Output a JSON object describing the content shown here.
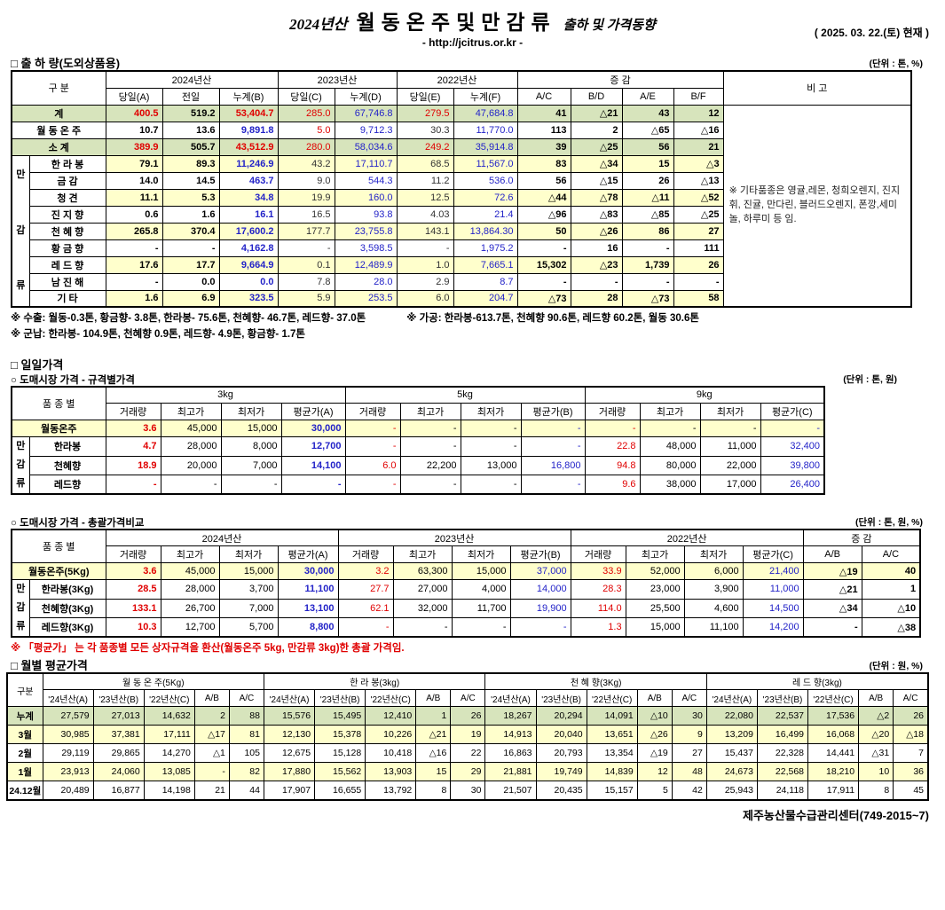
{
  "palette": {
    "red": "#e00000",
    "blue": "#2323c8",
    "green_bg": "#d7e4bc",
    "yellow_bg": "#ffffcc"
  },
  "header": {
    "title_year": "2024년산",
    "title_main": "월동온주및만감류",
    "title_sub": "출하 및 가격동향",
    "url": "- http://jcitrus.or.kr -",
    "date": "( 2025. 03. 22.(토) 현재 )"
  },
  "shipment": {
    "section_title": "□ 출 하 량(도외상품용)",
    "unit": "(단위 : 톤, %)",
    "corner_label": "구    분",
    "note_label": "비 고",
    "col_groups": [
      {
        "label": "2024년산",
        "span": 3
      },
      {
        "label": "2023년산",
        "span": 2
      },
      {
        "label": "2022년산",
        "span": 2
      },
      {
        "label": "증        감",
        "span": 4
      }
    ],
    "columns": [
      "당일(A)",
      "전일",
      "누계(B)",
      "당일(C)",
      "누계(D)",
      "당일(E)",
      "누계(F)",
      "A/C",
      "B/D",
      "A/E",
      "B/F"
    ],
    "group_label": "만감류",
    "remark": "※ 기타품종은 영귤,레몬, 청희오렌지, 진지휘, 진귤, 만다린, 블러드오렌지, 폰깡,세미놀, 하루미 등 임.",
    "default_colors": [
      "k",
      "k",
      "b",
      "k",
      "b",
      "k",
      "b",
      "k",
      "k",
      "k",
      "k"
    ],
    "rows": [
      {
        "name": "계",
        "bg": "green",
        "colors": [
          "r",
          "k",
          "r",
          "r",
          "b",
          "r",
          "b",
          "k",
          "k",
          "k",
          "k"
        ],
        "cells": [
          "400.5",
          "519.2",
          "53,404.7",
          "285.0",
          "67,746.8",
          "279.5",
          "47,684.8",
          "41",
          "△21",
          "43",
          "12"
        ]
      },
      {
        "name": "월 동 온 주",
        "bg": "white",
        "colors": [
          "k",
          "k",
          "b",
          "r",
          "b",
          "k",
          "b",
          "k",
          "k",
          "k",
          "k"
        ],
        "cells": [
          "10.7",
          "13.6",
          "9,891.8",
          "5.0",
          "9,712.3",
          "30.3",
          "11,770.0",
          "113",
          "2",
          "△65",
          "△16"
        ]
      },
      {
        "name": "소      계",
        "bg": "green",
        "colors": [
          "r",
          "k",
          "r",
          "r",
          "b",
          "r",
          "b",
          "k",
          "k",
          "k",
          "k"
        ],
        "cells": [
          "389.9",
          "505.7",
          "43,512.9",
          "280.0",
          "58,034.6",
          "249.2",
          "35,914.8",
          "39",
          "△25",
          "56",
          "21"
        ]
      },
      {
        "name": "한 라 봉",
        "bg": "yellow",
        "cells": [
          "79.1",
          "89.3",
          "11,246.9",
          "43.2",
          "17,110.7",
          "68.5",
          "11,567.0",
          "83",
          "△34",
          "15",
          "△3"
        ]
      },
      {
        "name": "금      감",
        "bg": "white",
        "cells": [
          "14.0",
          "14.5",
          "463.7",
          "9.0",
          "544.3",
          "11.2",
          "536.0",
          "56",
          "△15",
          "26",
          "△13"
        ]
      },
      {
        "name": "청      견",
        "bg": "yellow",
        "cells": [
          "11.1",
          "5.3",
          "34.8",
          "19.9",
          "160.0",
          "12.5",
          "72.6",
          "△44",
          "△78",
          "△11",
          "△52"
        ]
      },
      {
        "name": "진 지 향",
        "bg": "white",
        "cells": [
          "0.6",
          "1.6",
          "16.1",
          "16.5",
          "93.8",
          "4.03",
          "21.4",
          "△96",
          "△83",
          "△85",
          "△25"
        ]
      },
      {
        "name": "천 혜 향",
        "bg": "yellow",
        "cells": [
          "265.8",
          "370.4",
          "17,600.2",
          "177.7",
          "23,755.8",
          "143.1",
          "13,864.30",
          "50",
          "△26",
          "86",
          "27"
        ]
      },
      {
        "name": "황 금 향",
        "bg": "white",
        "cells": [
          "-",
          "-",
          "4,162.8",
          "-",
          "3,598.5",
          "-",
          "1,975.2",
          "-",
          "16",
          "-",
          "111"
        ]
      },
      {
        "name": "레 드 향",
        "bg": "yellow",
        "cells": [
          "17.6",
          "17.7",
          "9,664.9",
          "0.1",
          "12,489.9",
          "1.0",
          "7,665.1",
          "15,302",
          "△23",
          "1,739",
          "26"
        ]
      },
      {
        "name": "남 진 해",
        "bg": "white",
        "cells": [
          "-",
          "0.0",
          "0.0",
          "7.8",
          "28.0",
          "2.9",
          "8.7",
          "-",
          "-",
          "-",
          "-"
        ]
      },
      {
        "name": "기      타",
        "bg": "yellow",
        "cells": [
          "1.6",
          "6.9",
          "323.5",
          "5.9",
          "253.5",
          "6.0",
          "204.7",
          "△73",
          "28",
          "△73",
          "58"
        ]
      }
    ]
  },
  "notes": {
    "export": "※ 수출: 월동-0.3톤, 황금향- 3.8톤, 한라봉- 75.6톤, 천혜향- 46.7톤, 레드향- 37.0톤",
    "process": "※ 가공:  한라봉-613.7톤, 천혜향 90.6톤, 레드향 60.2톤, 월동 30.6톤",
    "military": "※ 군납: 한라봉- 104.9톤, 천혜향 0.9톤, 레드향- 4.9톤, 황금향- 1.7톤"
  },
  "daily": {
    "section_title": "□ 일일가격",
    "by_spec": {
      "title": "○ 도매시장 가격 - 규격별가격",
      "unit": "(단위 : 톤, 원)",
      "corner_label": "품 종 별",
      "group_label": "만감류",
      "sizes": [
        {
          "label": "3kg",
          "span": 4
        },
        {
          "label": "5kg",
          "span": 4
        },
        {
          "label": "9kg",
          "span": 4
        }
      ],
      "columns": [
        "거래량",
        "최고가",
        "최저가",
        "평균가(A)",
        "거래량",
        "최고가",
        "최저가",
        "평균가(B)",
        "거래량",
        "최고가",
        "최저가",
        "평균가(C)"
      ],
      "col_colors": [
        "r",
        "k",
        "k",
        "b",
        "r",
        "k",
        "k",
        "b",
        "r",
        "k",
        "k",
        "b"
      ],
      "rows": [
        {
          "name": "월동온주",
          "bg": "yellow",
          "cells": [
            "3.6",
            "45,000",
            "15,000",
            "30,000",
            "-",
            "-",
            "-",
            "-",
            "-",
            "-",
            "-",
            "-"
          ]
        },
        {
          "name": "한라봉",
          "bg": "white",
          "cells": [
            "4.7",
            "28,000",
            "8,000",
            "12,700",
            "-",
            "-",
            "-",
            "-",
            "22.8",
            "48,000",
            "11,000",
            "32,400"
          ]
        },
        {
          "name": "천혜향",
          "bg": "white",
          "cells": [
            "18.9",
            "20,000",
            "7,000",
            "14,100",
            "6.0",
            "22,200",
            "13,000",
            "16,800",
            "94.8",
            "80,000",
            "22,000",
            "39,800"
          ]
        },
        {
          "name": "레드향",
          "bg": "white",
          "cells": [
            "-",
            "-",
            "-",
            "-",
            "-",
            "-",
            "-",
            "-",
            "9.6",
            "38,000",
            "17,000",
            "26,400"
          ]
        }
      ]
    },
    "overall": {
      "title": "○ 도매시장 가격 - 총괄가격비교",
      "unit": "(단위 : 톤, 원, %)",
      "corner_label": "품 종 별",
      "group_label": "만감류",
      "year_groups": [
        {
          "label": "2024년산",
          "span": 4
        },
        {
          "label": "2023년산",
          "span": 4
        },
        {
          "label": "2022년산",
          "span": 4
        },
        {
          "label": "증    감",
          "span": 2
        }
      ],
      "columns": [
        "거래량",
        "최고가",
        "최저가",
        "평균가(A)",
        "거래량",
        "최고가",
        "최저가",
        "평균가(B)",
        "거래량",
        "최고가",
        "최저가",
        "평균가(C)",
        "A/B",
        "A/C"
      ],
      "col_colors": [
        "r",
        "k",
        "k",
        "b",
        "r",
        "k",
        "k",
        "b",
        "r",
        "k",
        "k",
        "b",
        "k",
        "k"
      ],
      "rows": [
        {
          "name": "월동온주(5Kg)",
          "bg": "yellow",
          "cells": [
            "3.6",
            "45,000",
            "15,000",
            "30,000",
            "3.2",
            "63,300",
            "15,000",
            "37,000",
            "33.9",
            "52,000",
            "6,000",
            "21,400",
            "△19",
            "40"
          ]
        },
        {
          "name": "한라봉(3Kg)",
          "bg": "white",
          "cells": [
            "28.5",
            "28,000",
            "3,700",
            "11,100",
            "27.7",
            "27,000",
            "4,000",
            "14,000",
            "28.3",
            "23,000",
            "3,900",
            "11,000",
            "△21",
            "1"
          ]
        },
        {
          "name": "천혜향(3Kg)",
          "bg": "white",
          "cells": [
            "133.1",
            "26,700",
            "7,000",
            "13,100",
            "62.1",
            "32,000",
            "11,700",
            "19,900",
            "114.0",
            "25,500",
            "4,600",
            "14,500",
            "△34",
            "△10"
          ]
        },
        {
          "name": "레드향(3Kg)",
          "bg": "white",
          "cells": [
            "10.3",
            "12,700",
            "5,700",
            "8,800",
            "-",
            "-",
            "-",
            "-",
            "1.3",
            "15,000",
            "11,100",
            "14,200",
            "-",
            "△38"
          ]
        }
      ],
      "note": "※  「평균가」 는 각 품종별 모든 상자규격을 환산(월동온주 5kg, 만감류 3kg)한 총괄 가격임."
    }
  },
  "monthly": {
    "section_title": "□ 월별 평균가격",
    "unit": "(단위 : 원, %)",
    "corner_label": "구분",
    "products": [
      {
        "label": "월 동 온 주(5Kg)",
        "span": 5
      },
      {
        "label": "한 라 봉(3kg)",
        "span": 5
      },
      {
        "label": "천 혜 향(3Kg)",
        "span": 5
      },
      {
        "label": "레 드 향(3kg)",
        "span": 5
      }
    ],
    "columns": [
      "'24년산(A)",
      "'23년산(B)",
      "'22년산(C)",
      "A/B",
      "A/C",
      "'24년산(A)",
      "'23년산(B)",
      "'22년산(C)",
      "A/B",
      "A/C",
      "'24년산(A)",
      "'23년산(B)",
      "'22년산(C)",
      "A/B",
      "A/C",
      "'24년산(A)",
      "'23년산(B)",
      "'22년산(C)",
      "A/B",
      "A/C"
    ],
    "rows": [
      {
        "name": "누계",
        "bg": "green",
        "cells": [
          "27,579",
          "27,013",
          "14,632",
          "2",
          "88",
          "15,576",
          "15,495",
          "12,410",
          "1",
          "26",
          "18,267",
          "20,294",
          "14,091",
          "△10",
          "30",
          "22,080",
          "22,537",
          "17,536",
          "△2",
          "26"
        ]
      },
      {
        "name": "3월",
        "bg": "yellow",
        "cells": [
          "30,985",
          "37,381",
          "17,111",
          "△17",
          "81",
          "12,130",
          "15,378",
          "10,226",
          "△21",
          "19",
          "14,913",
          "20,040",
          "13,651",
          "△26",
          "9",
          "13,209",
          "16,499",
          "16,068",
          "△20",
          "△18"
        ]
      },
      {
        "name": "2월",
        "bg": "white",
        "cells": [
          "29,119",
          "29,865",
          "14,270",
          "△1",
          "105",
          "12,675",
          "15,128",
          "10,418",
          "△16",
          "22",
          "16,863",
          "20,793",
          "13,354",
          "△19",
          "27",
          "15,437",
          "22,328",
          "14,441",
          "△31",
          "7"
        ]
      },
      {
        "name": "1월",
        "bg": "yellow",
        "cells": [
          "23,913",
          "24,060",
          "13,085",
          "-",
          "82",
          "17,880",
          "15,562",
          "13,903",
          "15",
          "29",
          "21,881",
          "19,749",
          "14,839",
          "12",
          "48",
          "24,673",
          "22,568",
          "18,210",
          "10",
          "36"
        ]
      },
      {
        "name": "24.12월",
        "bg": "white",
        "cells": [
          "20,489",
          "16,877",
          "14,198",
          "21",
          "44",
          "17,907",
          "16,655",
          "13,792",
          "8",
          "30",
          "21,507",
          "20,435",
          "15,157",
          "5",
          "42",
          "25,943",
          "24,118",
          "17,911",
          "8",
          "45"
        ]
      }
    ]
  },
  "footer": {
    "org": "제주농산물수급관리센터(749-2015~7)"
  }
}
